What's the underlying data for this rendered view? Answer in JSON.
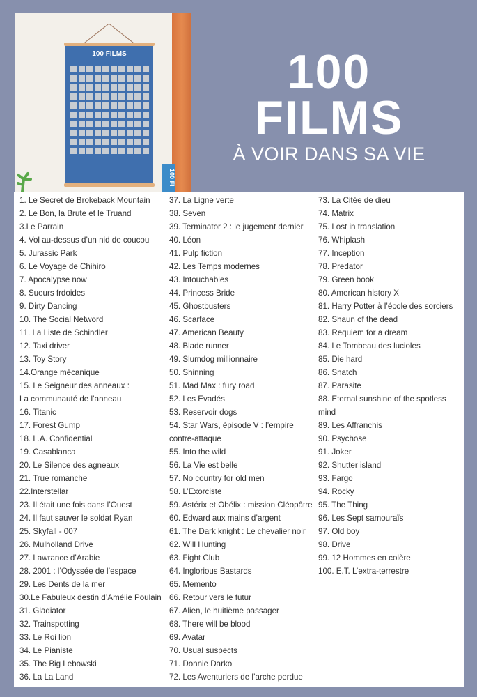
{
  "header": {
    "line1": "100",
    "line2": "FILMS",
    "subtitle": "À VOIR DANS SA VIE"
  },
  "photo": {
    "poster_title": "100 FILMS",
    "box_text": "100 FI"
  },
  "colors": {
    "background": "#8790ad",
    "poster_blue": "#3f6fae",
    "wood": "#e58a4f"
  },
  "columns": [
    [
      "1. Le Secret de Brokeback Mountain",
      "2. Le Bon, la Brute et le Truand",
      "3.Le Parrain",
      "4. Vol au-dessus d’un nid de coucou",
      "5. Jurassic Park",
      "6. Le Voyage de Chihiro",
      "7. Apocalypse now",
      "8. Sueurs frdoides",
      "9. Dirty Dancing",
      "10. The Social Netword",
      "11. La Liste de Schindler",
      "12. Taxi driver",
      "13. Toy Story",
      "14.Orange mécanique",
      "15. Le Seigneur des anneaux :\nLa communauté de l’anneau",
      "16. Titanic",
      "17. Forest Gump",
      "18. L.A. Confidential",
      "19. Casablanca",
      "20. Le Silence des agneaux",
      "21. True romanche",
      "22.Interstellar",
      "23. Il était une fois dans l’Ouest",
      "24. Il faut sauver le soldat Ryan",
      "25. Skyfall - 007",
      "26. Mulholland Drive",
      "27. Lawrance d’Arabie",
      "28. 2001 : l’Odyssée de l’espace",
      "29. Les Dents de la mer",
      "30.Le Fabuleux destin d’Amélie Poulain",
      "31. Gladiator",
      "32. Trainspotting",
      "33. Le Roi lion",
      "34. Le Pianiste",
      "35. The Big Lebowski",
      "36. La La Land"
    ],
    [
      "37. La Ligne verte",
      "38. Seven",
      "39. Terminator 2 : le jugement dernier",
      "40. Léon",
      "41. Pulp fiction",
      "42. Les Temps modernes",
      "43. Intouchables",
      "44. Princess Bride",
      "45. Ghostbusters",
      "46. Scarface",
      "47. American Beauty",
      "48. Blade runner",
      "49. Slumdog millionnaire",
      "50. Shinning",
      "51. Mad Max : fury road",
      "52. Les Evadés",
      "53. Reservoir dogs",
      "54. Star Wars, épisode V : l’empire\ncontre-attaque",
      "55. Into the wild",
      "56. La Vie est belle",
      "57. No country for old men",
      "58. L’Exorciste",
      "59. Astérix et Obélix : mission Cléopâtre",
      "60. Edward aux mains d’argent",
      "61. The Dark knight : Le chevalier noir",
      "62. Will Hunting",
      "63. Fight Club",
      "64. Inglorious Bastards",
      "65. Memento",
      "66. Retour vers le futur",
      "67. Alien, le huitième passager",
      "68. There will be blood",
      "69. Avatar",
      "70. Usual suspects",
      "71. Donnie Darko",
      "72. Les Aventuriers de l’arche perdue"
    ],
    [
      "73. La Citée de dieu",
      "74. Matrix",
      "75. Lost in translation",
      "76. Whiplash",
      "77. Inception",
      "78. Predator",
      "79. Green book",
      "80. American history X",
      "81. Harry Potter à l’école des sorciers",
      "82. Shaun of the dead",
      "83. Requiem for a dream",
      "84. Le Tombeau des lucioles",
      "85. Die hard",
      "86. Snatch",
      "87. Parasite",
      "88. Eternal sunshine of the spotless mind",
      "89. Les Affranchis",
      "90. Psychose",
      "91. Joker",
      "92. Shutter island",
      "93. Fargo",
      "94. Rocky",
      "95. The Thing",
      "96. Les Sept samouraïs",
      "97. Old boy",
      "98. Drive",
      "99. 12 Hommes en colère",
      "100. E.T. L’extra-terrestre"
    ]
  ]
}
